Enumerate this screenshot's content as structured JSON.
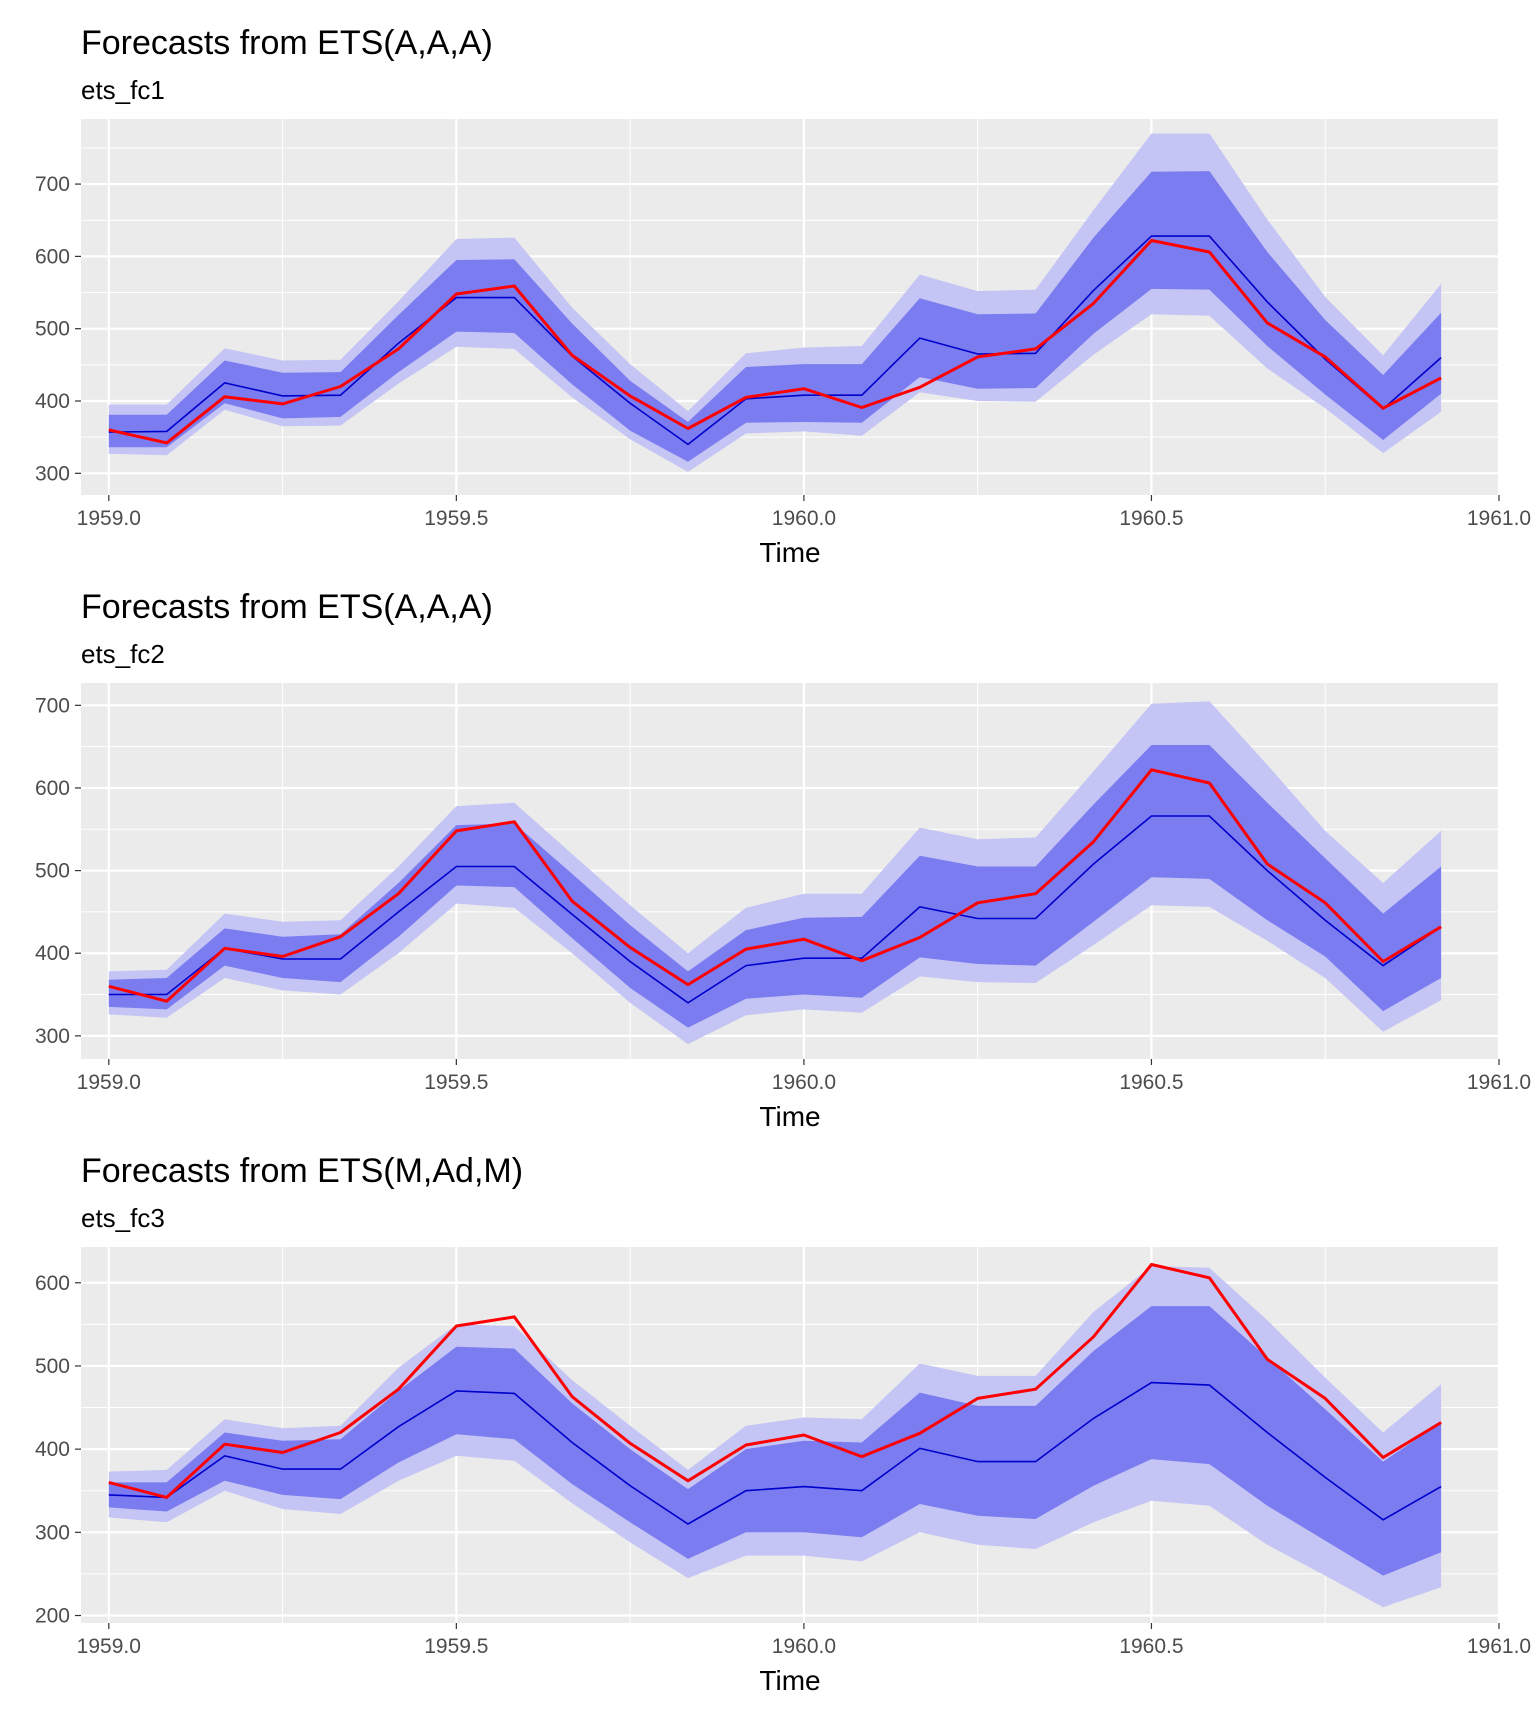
{
  "colors": {
    "panel_bg": "#ebebeb",
    "grid": "#ffffff",
    "band80": "#7b7cef",
    "band95": "#c4c4f5",
    "forecast": "#0000cc",
    "actual": "#ff0000"
  },
  "chart_data": [
    {
      "type": "area",
      "title": "Forecasts from ETS(A,A,A)",
      "subtitle": "ets_fc1",
      "xlabel": "Time",
      "ylabel": "",
      "xlim": [
        1958.96,
        1961.0
      ],
      "ylim": [
        270,
        790
      ],
      "xticks": [
        1959.0,
        1959.5,
        1960.0,
        1960.5,
        1961.0
      ],
      "xtick_labels": [
        "1959.0",
        "1959.5",
        "1960.0",
        "1960.5",
        "1961.0"
      ],
      "yticks": [
        300,
        400,
        500,
        600,
        700
      ],
      "ytick_labels": [
        "300",
        "400",
        "500",
        "600",
        "700"
      ],
      "grid": true,
      "x": [
        1959.0,
        1959.0833,
        1959.1667,
        1959.25,
        1959.3333,
        1959.4167,
        1959.5,
        1959.5833,
        1959.6667,
        1959.75,
        1959.8333,
        1959.9167,
        1960.0,
        1960.0833,
        1960.1667,
        1960.25,
        1960.3333,
        1960.4167,
        1960.5,
        1960.5833,
        1960.6667,
        1960.75,
        1960.8333,
        1960.9167
      ],
      "series": [
        {
          "role": "band95",
          "lower": [
            327,
            325,
            388,
            365,
            366,
            424,
            475,
            472,
            405,
            347,
            302,
            355,
            358,
            352,
            412,
            400,
            399,
            464,
            520,
            518,
            445,
            390,
            328,
            385
          ],
          "upper": [
            395,
            395,
            473,
            456,
            457,
            538,
            624,
            626,
            529,
            451,
            386,
            466,
            474,
            476,
            575,
            552,
            554,
            664,
            770,
            770,
            651,
            544,
            463,
            562
          ]
        },
        {
          "role": "band80",
          "lower": [
            336,
            336,
            397,
            376,
            378,
            440,
            496,
            494,
            423,
            359,
            316,
            370,
            371,
            370,
            433,
            417,
            418,
            493,
            555,
            554,
            476,
            409,
            346,
            410
          ],
          "upper": [
            381,
            381,
            456,
            439,
            440,
            519,
            595,
            596,
            507,
            428,
            371,
            447,
            451,
            451,
            542,
            520,
            521,
            626,
            717,
            718,
            606,
            512,
            436,
            522
          ]
        },
        {
          "role": "forecast",
          "values": [
            357,
            358,
            425,
            407,
            408,
            480,
            543,
            543,
            462,
            397,
            340,
            403,
            408,
            408,
            487,
            465,
            466,
            553,
            628,
            628,
            537,
            458,
            389,
            460
          ]
        },
        {
          "role": "actual",
          "values": [
            360,
            342,
            406,
            396,
            420,
            472,
            548,
            559,
            463,
            407,
            362,
            405,
            417,
            391,
            419,
            461,
            472,
            535,
            622,
            606,
            508,
            461,
            390,
            432
          ]
        }
      ]
    },
    {
      "type": "area",
      "title": "Forecasts from ETS(A,A,A)",
      "subtitle": "ets_fc2",
      "xlabel": "Time",
      "ylabel": "",
      "xlim": [
        1958.96,
        1961.0
      ],
      "ylim": [
        272,
        727
      ],
      "xticks": [
        1959.0,
        1959.5,
        1960.0,
        1960.5,
        1961.0
      ],
      "xtick_labels": [
        "1959.0",
        "1959.5",
        "1960.0",
        "1960.5",
        "1961.0"
      ],
      "yticks": [
        300,
        400,
        500,
        600,
        700
      ],
      "ytick_labels": [
        "300",
        "400",
        "500",
        "600",
        "700"
      ],
      "grid": true,
      "x": [
        1959.0,
        1959.0833,
        1959.1667,
        1959.25,
        1959.3333,
        1959.4167,
        1959.5,
        1959.5833,
        1959.6667,
        1959.75,
        1959.8333,
        1959.9167,
        1960.0,
        1960.0833,
        1960.1667,
        1960.25,
        1960.3333,
        1960.4167,
        1960.5,
        1960.5833,
        1960.6667,
        1960.75,
        1960.8333,
        1960.9167
      ],
      "series": [
        {
          "role": "band95",
          "lower": [
            326,
            322,
            370,
            355,
            350,
            400,
            460,
            455,
            400,
            340,
            290,
            325,
            332,
            328,
            372,
            365,
            364,
            410,
            458,
            456,
            415,
            370,
            305,
            343
          ]
        },
        {
          "role": "band95",
          "upper": [
            378,
            380,
            448,
            438,
            440,
            505,
            578,
            582,
            520,
            458,
            400,
            455,
            472,
            472,
            552,
            538,
            540,
            620,
            702,
            705,
            628,
            548,
            485,
            548
          ]
        },
        {
          "role": "band80",
          "lower": [
            335,
            332,
            385,
            370,
            365,
            420,
            482,
            480,
            418,
            358,
            310,
            345,
            350,
            346,
            395,
            387,
            385,
            438,
            492,
            490,
            440,
            396,
            330,
            370
          ],
          "upper": [
            368,
            370,
            430,
            420,
            423,
            485,
            555,
            557,
            496,
            434,
            378,
            428,
            443,
            444,
            518,
            505,
            505,
            580,
            652,
            652,
            582,
            515,
            448,
            505
          ]
        },
        {
          "role": "forecast",
          "values": [
            350,
            350,
            406,
            393,
            393,
            450,
            505,
            505,
            447,
            390,
            340,
            385,
            394,
            394,
            456,
            442,
            442,
            508,
            566,
            566,
            500,
            440,
            385,
            432
          ]
        },
        {
          "role": "actual",
          "values": [
            360,
            342,
            406,
            396,
            420,
            472,
            548,
            559,
            463,
            407,
            362,
            405,
            417,
            391,
            419,
            461,
            472,
            535,
            622,
            606,
            508,
            461,
            390,
            432
          ]
        }
      ]
    },
    {
      "type": "area",
      "title": "Forecasts from ETS(M,Ad,M)",
      "subtitle": "ets_fc3",
      "xlabel": "Time",
      "ylabel": "",
      "xlim": [
        1958.96,
        1961.0
      ],
      "ylim": [
        191,
        643
      ],
      "xticks": [
        1959.0,
        1959.5,
        1960.0,
        1960.5,
        1961.0
      ],
      "xtick_labels": [
        "1959.0",
        "1959.5",
        "1960.0",
        "1960.5",
        "1961.0"
      ],
      "yticks": [
        200,
        300,
        400,
        500,
        600
      ],
      "ytick_labels": [
        "200",
        "300",
        "400",
        "500",
        "600"
      ],
      "grid": true,
      "x": [
        1959.0,
        1959.0833,
        1959.1667,
        1959.25,
        1959.3333,
        1959.4167,
        1959.5,
        1959.5833,
        1959.6667,
        1959.75,
        1959.8333,
        1959.9167,
        1960.0,
        1960.0833,
        1960.1667,
        1960.25,
        1960.3333,
        1960.4167,
        1960.5,
        1960.5833,
        1960.6667,
        1960.75,
        1960.8333,
        1960.9167
      ],
      "series": [
        {
          "role": "band95",
          "lower": [
            318,
            312,
            350,
            328,
            322,
            362,
            392,
            386,
            335,
            288,
            245,
            272,
            272,
            265,
            300,
            285,
            280,
            312,
            338,
            332,
            285,
            248,
            210,
            234
          ],
          "upper": [
            373,
            375,
            436,
            425,
            428,
            498,
            550,
            548,
            483,
            428,
            375,
            428,
            438,
            436,
            503,
            488,
            488,
            565,
            620,
            618,
            555,
            486,
            420,
            478
          ]
        },
        {
          "role": "band80",
          "lower": [
            330,
            325,
            362,
            345,
            340,
            384,
            418,
            412,
            358,
            312,
            268,
            300,
            300,
            294,
            334,
            320,
            316,
            356,
            388,
            382,
            332,
            290,
            248,
            276
          ],
          "upper": [
            360,
            360,
            420,
            410,
            412,
            470,
            523,
            521,
            455,
            400,
            352,
            400,
            410,
            408,
            468,
            452,
            452,
            518,
            572,
            572,
            510,
            448,
            385,
            432
          ]
        },
        {
          "role": "forecast",
          "values": [
            345,
            342,
            392,
            376,
            376,
            427,
            470,
            467,
            408,
            356,
            310,
            350,
            355,
            350,
            401,
            385,
            385,
            437,
            480,
            477,
            420,
            366,
            315,
            355
          ]
        },
        {
          "role": "actual",
          "values": [
            360,
            342,
            406,
            396,
            420,
            472,
            548,
            559,
            463,
            407,
            362,
            405,
            417,
            391,
            419,
            461,
            472,
            535,
            622,
            606,
            508,
            461,
            390,
            432
          ]
        }
      ]
    }
  ]
}
